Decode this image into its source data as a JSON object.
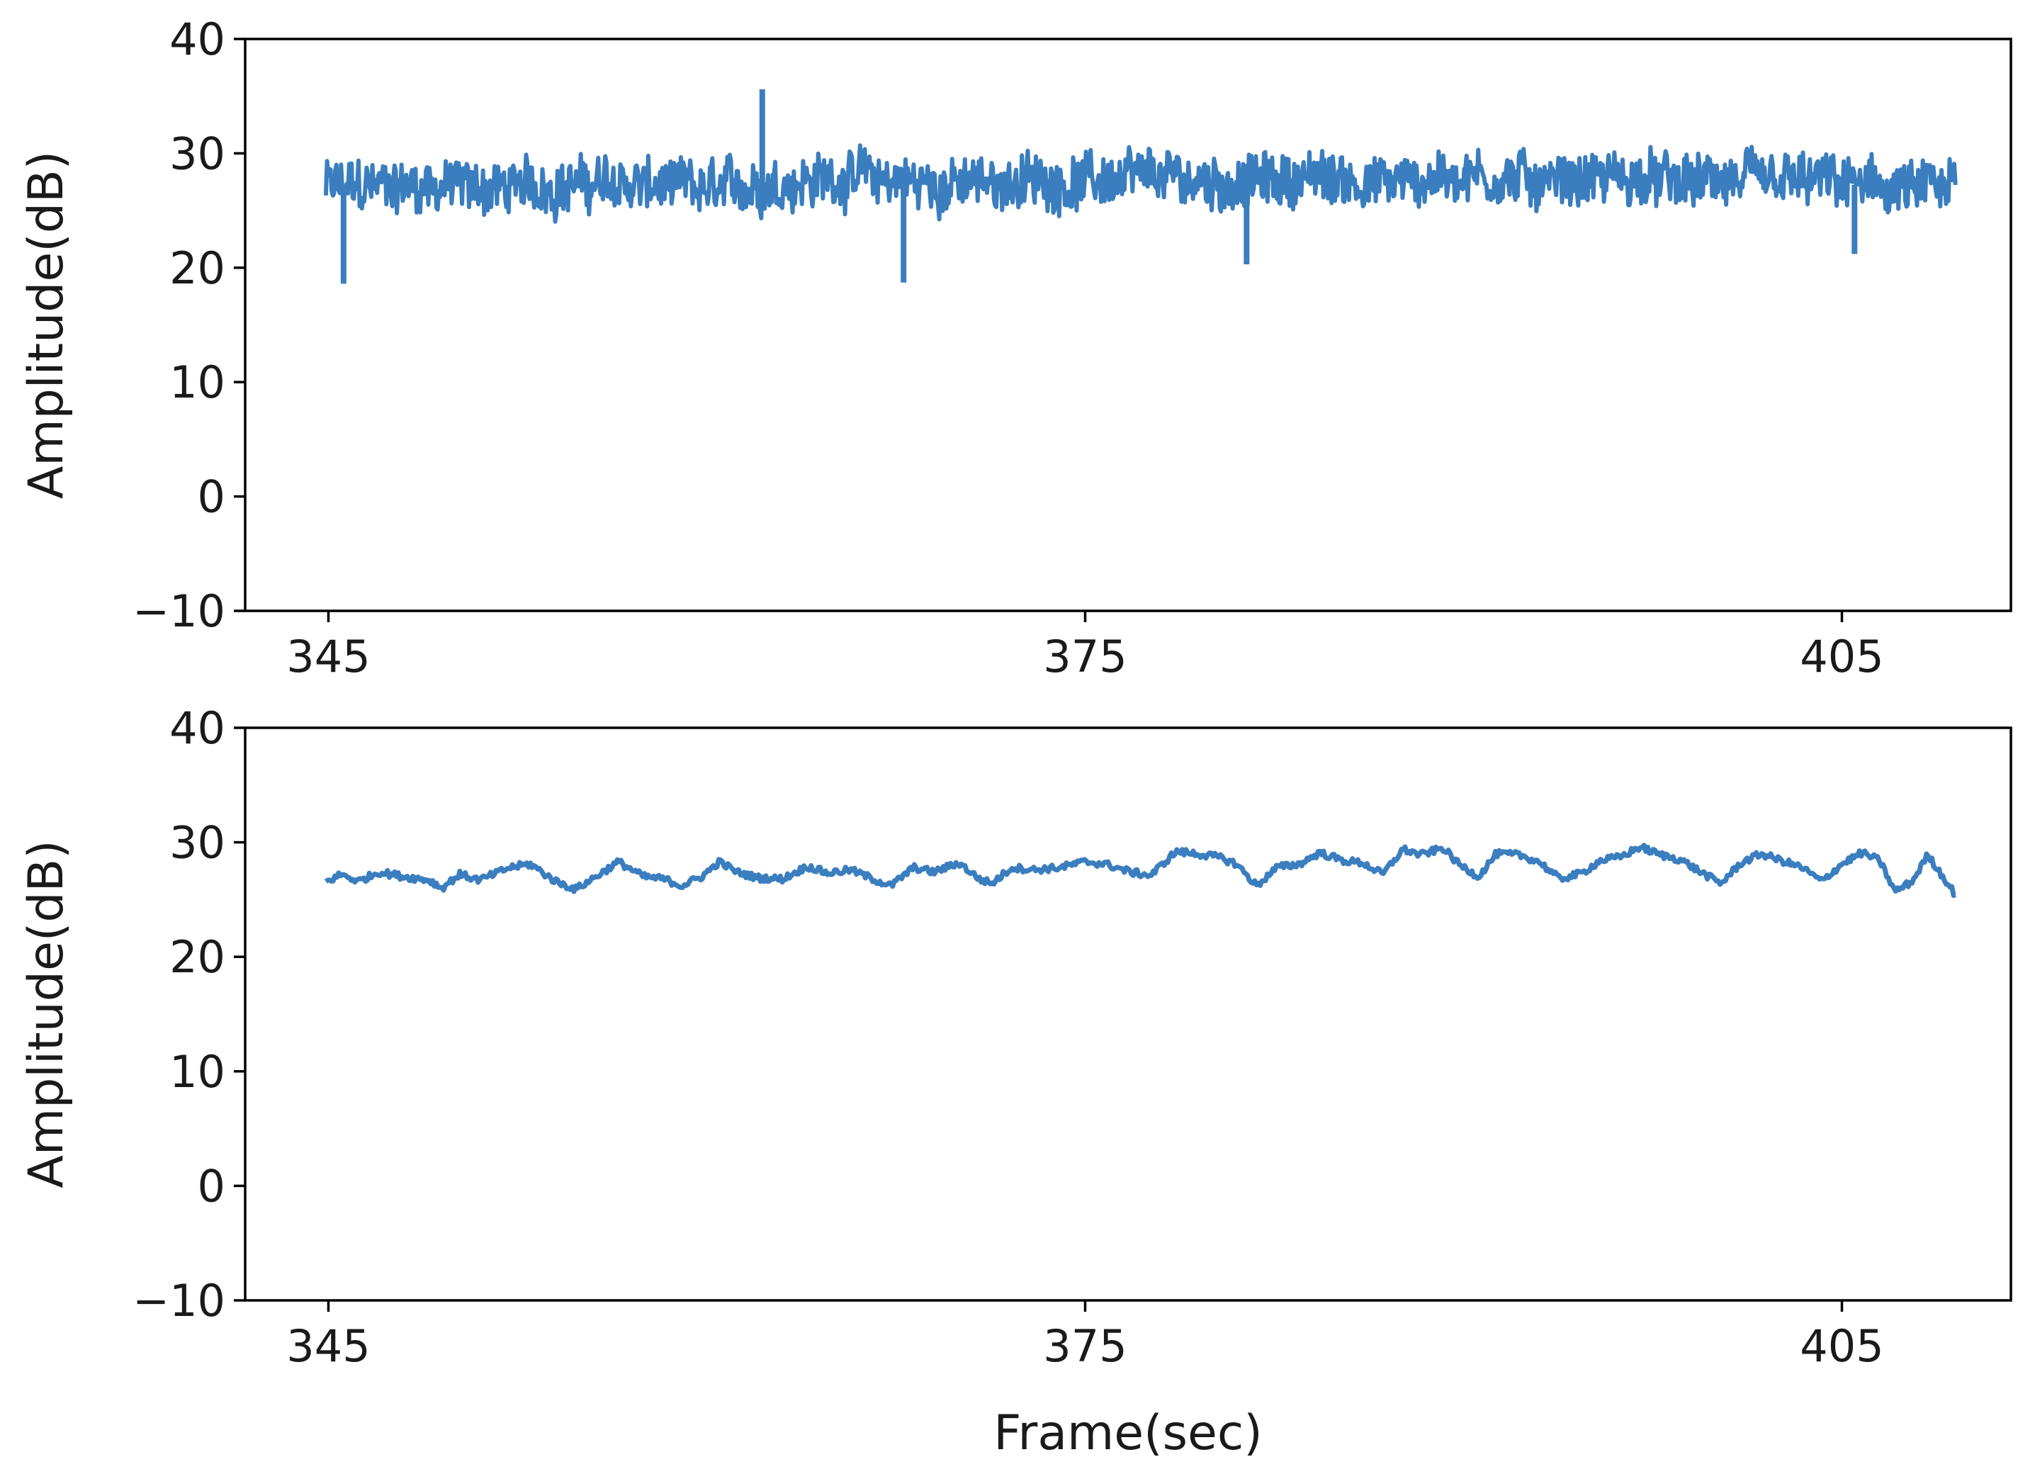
{
  "colors": {
    "series": "#3a7ebf",
    "axes": "#000000",
    "text": "#1a1a1a"
  },
  "chart_data": [
    {
      "type": "line",
      "title": "",
      "xlabel": "",
      "ylabel": "Amplitude(dB)",
      "xlim": [
        341.7,
        411.7
      ],
      "ylim": [
        -10,
        40
      ],
      "xticks": [
        345,
        375,
        405
      ],
      "xtick_labels": [
        "345",
        "375",
        "405"
      ],
      "yticks": [
        -10,
        0,
        10,
        20,
        30,
        40
      ],
      "ytick_labels": [
        "−10",
        "0",
        "10",
        "20",
        "30",
        "40"
      ],
      "grid": false,
      "legend": "none",
      "series": [
        {
          "style": "noisy",
          "x_range": [
            344.9,
            409.5
          ],
          "baseline": [
            [
              344.9,
              27.0
            ],
            [
              348,
              27.2
            ],
            [
              352,
              27.0
            ],
            [
              356,
              27.4
            ],
            [
              360,
              26.8
            ],
            [
              363,
              27.5
            ],
            [
              366,
              28.0
            ],
            [
              369,
              27.2
            ],
            [
              372,
              27.5
            ],
            [
              375,
              27.6
            ],
            [
              378,
              27.9
            ],
            [
              381,
              27.4
            ],
            [
              384,
              27.9
            ],
            [
              387,
              27.4
            ],
            [
              390,
              28.1
            ],
            [
              393,
              27.6
            ],
            [
              396,
              27.8
            ],
            [
              399,
              27.4
            ],
            [
              402,
              27.6
            ],
            [
              405,
              27.4
            ],
            [
              407,
              26.8
            ],
            [
              409.5,
              26.8
            ]
          ],
          "spikes": [
            {
              "x": 345.6,
              "y": 18.6
            },
            {
              "x": 362.2,
              "y": 35.6
            },
            {
              "x": 367.8,
              "y": 18.7
            },
            {
              "x": 381.4,
              "y": 20.3
            },
            {
              "x": 405.5,
              "y": 21.2
            }
          ]
        }
      ]
    },
    {
      "type": "line",
      "title": "",
      "xlabel": "Frame(sec)",
      "ylabel": "Amplitude(dB)",
      "xlim": [
        341.7,
        411.7
      ],
      "ylim": [
        -10,
        40
      ],
      "xticks": [
        345,
        375,
        405
      ],
      "xtick_labels": [
        "345",
        "375",
        "405"
      ],
      "yticks": [
        -10,
        0,
        10,
        20,
        30,
        40
      ],
      "ytick_labels": [
        "−10",
        "0",
        "10",
        "20",
        "30",
        "40"
      ],
      "grid": false,
      "legend": "none",
      "series": [
        {
          "style": "smooth",
          "points": [
            [
              344.9,
              26.5
            ],
            [
              345.5,
              27.2
            ],
            [
              346.2,
              26.6
            ],
            [
              347,
              27.4
            ],
            [
              348,
              27.0
            ],
            [
              349,
              26.7
            ],
            [
              349.5,
              26.0
            ],
            [
              350.2,
              27.2
            ],
            [
              351,
              26.7
            ],
            [
              352.2,
              27.8
            ],
            [
              353,
              28.1
            ],
            [
              354,
              26.6
            ],
            [
              354.8,
              25.9
            ],
            [
              355.6,
              27.0
            ],
            [
              356.5,
              28.3
            ],
            [
              357.5,
              27.0
            ],
            [
              358.3,
              26.8
            ],
            [
              359,
              26.2
            ],
            [
              359.8,
              27.0
            ],
            [
              360.5,
              28.3
            ],
            [
              361.2,
              27.4
            ],
            [
              362,
              26.9
            ],
            [
              363,
              26.8
            ],
            [
              364,
              27.9
            ],
            [
              364.8,
              27.3
            ],
            [
              365.7,
              27.6
            ],
            [
              366.7,
              26.7
            ],
            [
              367.3,
              26.2
            ],
            [
              368.2,
              27.8
            ],
            [
              369,
              27.4
            ],
            [
              370,
              28.2
            ],
            [
              370.8,
              26.8
            ],
            [
              371.3,
              26.4
            ],
            [
              372.1,
              27.8
            ],
            [
              373,
              27.6
            ],
            [
              374,
              27.8
            ],
            [
              375,
              28.3
            ],
            [
              375.8,
              28.1
            ],
            [
              376.8,
              27.4
            ],
            [
              377.6,
              27.1
            ],
            [
              378.6,
              29.2
            ],
            [
              379.4,
              29.0
            ],
            [
              380.3,
              28.7
            ],
            [
              381,
              28.1
            ],
            [
              381.8,
              26.2
            ],
            [
              382.6,
              27.8
            ],
            [
              383.5,
              28.1
            ],
            [
              384.3,
              29.1
            ],
            [
              385.2,
              28.4
            ],
            [
              386,
              28.2
            ],
            [
              386.8,
              27.2
            ],
            [
              387.6,
              29.4
            ],
            [
              388.3,
              28.9
            ],
            [
              389.2,
              29.5
            ],
            [
              389.8,
              28.1
            ],
            [
              390.6,
              27.0
            ],
            [
              391.3,
              29.0
            ],
            [
              392.2,
              28.9
            ],
            [
              393,
              28.3
            ],
            [
              393.8,
              26.8
            ],
            [
              394.7,
              27.3
            ],
            [
              395.4,
              28.4
            ],
            [
              396.2,
              28.7
            ],
            [
              397,
              29.6
            ],
            [
              397.8,
              28.9
            ],
            [
              398.6,
              28.5
            ],
            [
              399.4,
              27.4
            ],
            [
              400.2,
              26.4
            ],
            [
              401,
              28.2
            ],
            [
              401.8,
              29.0
            ],
            [
              402.6,
              28.4
            ],
            [
              403.4,
              27.8
            ],
            [
              404.2,
              26.6
            ],
            [
              405,
              28.1
            ],
            [
              405.8,
              29.1
            ],
            [
              406.5,
              28.4
            ],
            [
              407.1,
              25.7
            ],
            [
              407.8,
              26.6
            ],
            [
              408.4,
              28.9
            ],
            [
              409.2,
              26.4
            ],
            [
              409.5,
              25.4
            ]
          ]
        }
      ]
    }
  ]
}
